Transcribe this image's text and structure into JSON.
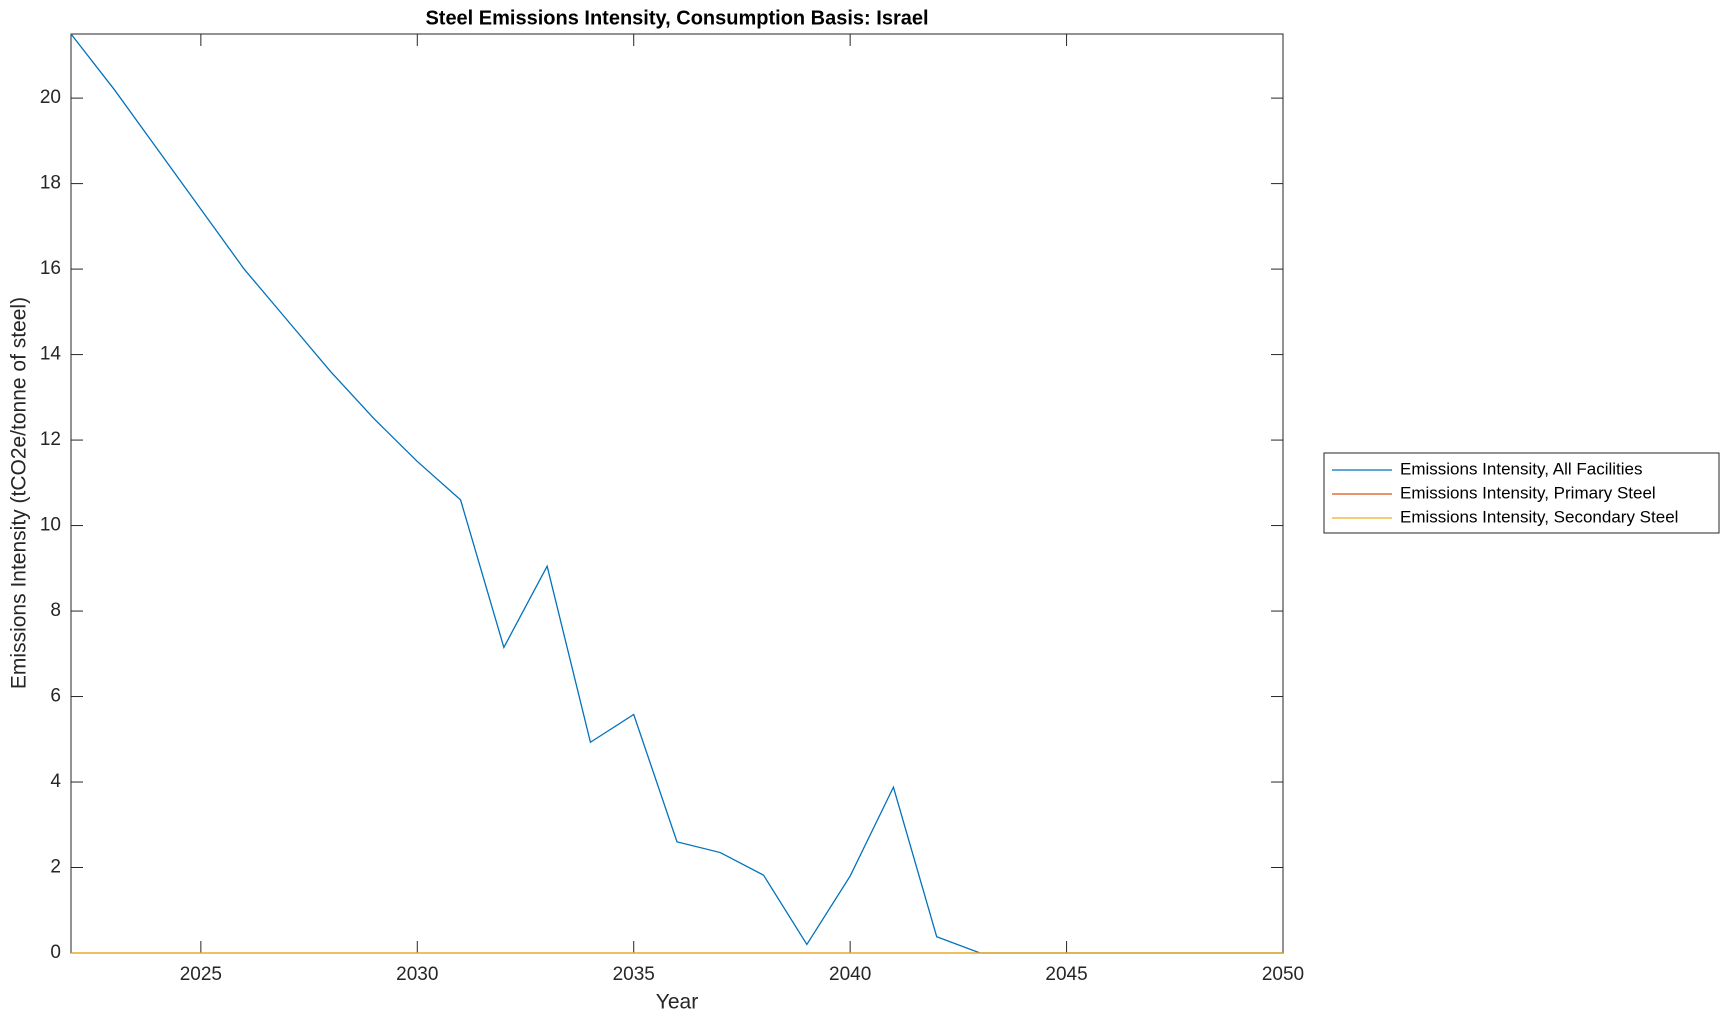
{
  "chart_data": {
    "type": "line",
    "title": "Steel Emissions Intensity, Consumption Basis: Israel",
    "x_label": "Year",
    "y_label": "Emissions Intensity (tCO2e/tonne of steel)",
    "x": [
      2022,
      2023,
      2024,
      2025,
      2026,
      2027,
      2028,
      2029,
      2030,
      2031,
      2032,
      2033,
      2034,
      2035,
      2036,
      2037,
      2038,
      2039,
      2040,
      2041,
      2042,
      2043,
      2044,
      2045,
      2046,
      2047,
      2048,
      2049,
      2050
    ],
    "series": [
      {
        "name": "Emissions Intensity, All Facilities",
        "color": "#0072BD",
        "values": [
          21.5,
          20.2,
          18.8,
          17.4,
          16.0,
          14.8,
          13.6,
          12.5,
          11.5,
          10.6,
          7.15,
          9.05,
          4.93,
          5.58,
          2.6,
          2.35,
          1.82,
          0.2,
          1.8,
          3.88,
          0.38,
          0,
          0,
          0,
          0,
          0,
          0,
          0,
          0
        ]
      },
      {
        "name": "Emissions Intensity, Primary Steel",
        "color": "#D95319",
        "values": [
          0,
          0,
          0,
          0,
          0,
          0,
          0,
          0,
          0,
          0,
          0,
          0,
          0,
          0,
          0,
          0,
          0,
          0,
          0,
          0,
          0,
          0,
          0,
          0,
          0,
          0,
          0,
          0,
          0
        ]
      },
      {
        "name": "Emissions Intensity, Secondary Steel",
        "color": "#EDB120",
        "values": [
          0,
          0,
          0,
          0,
          0,
          0,
          0,
          0,
          0,
          0,
          0,
          0,
          0,
          0,
          0,
          0,
          0,
          0,
          0,
          0,
          0,
          0,
          0,
          0,
          0,
          0,
          0,
          0,
          0
        ]
      }
    ],
    "xlim": [
      2022,
      2050
    ],
    "xticks": [
      2025,
      2030,
      2035,
      2040,
      2045,
      2050
    ],
    "ylim": [
      0,
      21.5
    ],
    "yticks": [
      0,
      2,
      4,
      6,
      8,
      10,
      12,
      14,
      16,
      18,
      20
    ],
    "grid": false,
    "legend": "outside-right"
  }
}
